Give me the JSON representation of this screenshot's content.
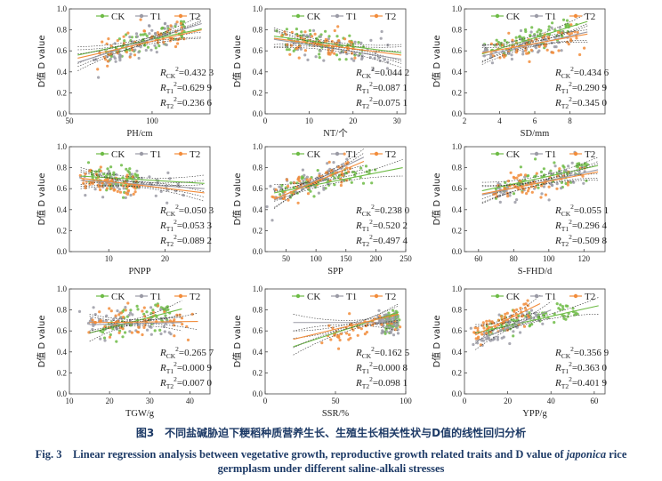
{
  "legend_labels": [
    "CK",
    "T1",
    "T2"
  ],
  "colors": {
    "CK": "#6dbb45",
    "T1": "#9a9aa5",
    "T2": "#f28c3a"
  },
  "y_label": "D值  D value",
  "caption": {
    "cn": "图3　不同盐碱胁迫下粳稻种质营养生长、生殖生长相关性状与D值的线性回归分析",
    "en_prefix": "Fig. 3　Linear regression analysis between vegetative growth, reproductive growth related traits and D value of ",
    "en_italic": "japonica",
    "en_suffix": " rice",
    "en_line2": "germplasm under different saline-alkali stresses"
  },
  "chart_data": [
    {
      "type": "scatter",
      "xlabel": "PH/cm",
      "xlim": [
        50,
        135
      ],
      "xticks": [
        50,
        100
      ],
      "ylim": [
        0,
        1.0
      ],
      "yticks": [
        0,
        0.2,
        0.4,
        0.6,
        0.8,
        1.0
      ],
      "series": [
        {
          "name": "CK",
          "line": [
            [
              55,
              0.56
            ],
            [
              130,
              0.81
            ]
          ],
          "cloud": {
            "cx": [
              70,
              120
            ],
            "cy": [
              0.58,
              0.82
            ],
            "spread": 0.1,
            "n": 70
          }
        },
        {
          "name": "T1",
          "line": [
            [
              55,
              0.49
            ],
            [
              130,
              0.86
            ]
          ],
          "cloud": {
            "cx": [
              65,
              115
            ],
            "cy": [
              0.5,
              0.78
            ],
            "spread": 0.12,
            "n": 60
          }
        },
        {
          "name": "T2",
          "line": [
            [
              55,
              0.53
            ],
            [
              130,
              0.8
            ]
          ],
          "cloud": {
            "cx": [
              70,
              120
            ],
            "cy": [
              0.57,
              0.78
            ],
            "spread": 0.1,
            "n": 60
          }
        }
      ],
      "r2": [
        "0.432 3",
        "0.629 9",
        "0.236 6"
      ]
    },
    {
      "type": "scatter",
      "xlabel": "NT/个",
      "xlim": [
        0,
        32
      ],
      "xticks": [
        0,
        10,
        20,
        30
      ],
      "ylim": [
        0,
        1.0
      ],
      "yticks": [
        0,
        0.2,
        0.4,
        0.6,
        0.8,
        1.0
      ],
      "series": [
        {
          "name": "CK",
          "line": [
            [
              2,
              0.74
            ],
            [
              31,
              0.58
            ]
          ],
          "cloud": {
            "cx": [
              4,
              22
            ],
            "cy": [
              0.73,
              0.62
            ],
            "spread": 0.1,
            "n": 70
          }
        },
        {
          "name": "T1",
          "line": [
            [
              2,
              0.71
            ],
            [
              31,
              0.52
            ]
          ],
          "cloud": {
            "cx": [
              5,
              28
            ],
            "cy": [
              0.7,
              0.55
            ],
            "spread": 0.12,
            "n": 60
          }
        },
        {
          "name": "T2",
          "line": [
            [
              2,
              0.72
            ],
            [
              31,
              0.56
            ]
          ],
          "cloud": {
            "cx": [
              4,
              20
            ],
            "cy": [
              0.72,
              0.62
            ],
            "spread": 0.1,
            "n": 60
          }
        }
      ],
      "r2": [
        "0.044 2",
        "0.087 1",
        "0.075 1"
      ]
    },
    {
      "type": "scatter",
      "xlabel": "SD/mm",
      "xlim": [
        2,
        10
      ],
      "xticks": [
        2,
        4,
        6,
        8
      ],
      "ylim": [
        0,
        1.0
      ],
      "yticks": [
        0,
        0.2,
        0.4,
        0.6,
        0.8,
        1.0
      ],
      "series": [
        {
          "name": "CK",
          "line": [
            [
              3,
              0.57
            ],
            [
              9,
              0.88
            ]
          ],
          "cloud": {
            "cx": [
              3.5,
              8
            ],
            "cy": [
              0.6,
              0.84
            ],
            "spread": 0.09,
            "n": 70
          }
        },
        {
          "name": "T1",
          "line": [
            [
              3,
              0.55
            ],
            [
              9,
              0.78
            ]
          ],
          "cloud": {
            "cx": [
              3,
              7.5
            ],
            "cy": [
              0.56,
              0.74
            ],
            "spread": 0.12,
            "n": 60
          }
        },
        {
          "name": "T2",
          "line": [
            [
              3,
              0.58
            ],
            [
              9,
              0.76
            ]
          ],
          "cloud": {
            "cx": [
              3.5,
              8.5
            ],
            "cy": [
              0.6,
              0.75
            ],
            "spread": 0.1,
            "n": 60
          }
        }
      ],
      "r2": [
        "0.434 6",
        "0.290 9",
        "0.345 0"
      ]
    },
    {
      "type": "scatter",
      "xlabel": "PNPP",
      "xlim": [
        3,
        28
      ],
      "xticks": [
        10,
        20
      ],
      "ylim": [
        0,
        1.0
      ],
      "yticks": [
        0,
        0.2,
        0.4,
        0.6,
        0.8,
        1.0
      ],
      "series": [
        {
          "name": "CK",
          "line": [
            [
              5,
              0.72
            ],
            [
              27,
              0.65
            ]
          ],
          "cloud": {
            "cx": [
              6,
              15
            ],
            "cy": [
              0.71,
              0.67
            ],
            "spread": 0.1,
            "n": 70
          }
        },
        {
          "name": "T1",
          "line": [
            [
              5,
              0.68
            ],
            [
              27,
              0.6
            ]
          ],
          "cloud": {
            "cx": [
              6,
              22
            ],
            "cy": [
              0.68,
              0.62
            ],
            "spread": 0.12,
            "n": 60
          }
        },
        {
          "name": "T2",
          "line": [
            [
              5,
              0.7
            ],
            [
              27,
              0.56
            ]
          ],
          "cloud": {
            "cx": [
              5,
              15
            ],
            "cy": [
              0.69,
              0.62
            ],
            "spread": 0.1,
            "n": 60
          }
        }
      ],
      "r2": [
        "0.050 3",
        "0.053 3",
        "0.089 2"
      ]
    },
    {
      "type": "scatter",
      "xlabel": "SPP",
      "xlim": [
        15,
        250
      ],
      "xticks": [
        50,
        100,
        150,
        200,
        250
      ],
      "ylim": [
        0,
        1.0
      ],
      "yticks": [
        0,
        0.2,
        0.4,
        0.6,
        0.8,
        1.0
      ],
      "series": [
        {
          "name": "CK",
          "line": [
            [
              30,
              0.56
            ],
            [
              245,
              0.8
            ]
          ],
          "cloud": {
            "cx": [
              40,
              200
            ],
            "cy": [
              0.57,
              0.78
            ],
            "spread": 0.08,
            "n": 70
          }
        },
        {
          "name": "T1",
          "line": [
            [
              30,
              0.49
            ],
            [
              180,
              0.9
            ]
          ],
          "cloud": {
            "cx": [
              30,
              150
            ],
            "cy": [
              0.52,
              0.82
            ],
            "spread": 0.1,
            "n": 60
          }
        },
        {
          "name": "T2",
          "line": [
            [
              30,
              0.5
            ],
            [
              180,
              0.86
            ]
          ],
          "cloud": {
            "cx": [
              30,
              160
            ],
            "cy": [
              0.52,
              0.8
            ],
            "spread": 0.09,
            "n": 60
          }
        }
      ],
      "r2": [
        "0.238 0",
        "0.520 2",
        "0.497 4"
      ]
    },
    {
      "type": "scatter",
      "xlabel": "S-FHD/d",
      "xlim": [
        52,
        132
      ],
      "xticks": [
        60,
        80,
        100,
        120
      ],
      "ylim": [
        0,
        1.0
      ],
      "yticks": [
        0,
        0.2,
        0.4,
        0.6,
        0.8,
        1.0
      ],
      "series": [
        {
          "name": "CK",
          "line": [
            [
              62,
              0.58
            ],
            [
              128,
              0.82
            ]
          ],
          "cloud": {
            "cx": [
              70,
              120
            ],
            "cy": [
              0.6,
              0.8
            ],
            "spread": 0.09,
            "n": 70
          }
        },
        {
          "name": "T1",
          "line": [
            [
              62,
              0.54
            ],
            [
              128,
              0.78
            ]
          ],
          "cloud": {
            "cx": [
              70,
              120
            ],
            "cy": [
              0.55,
              0.75
            ],
            "spread": 0.12,
            "n": 60
          }
        },
        {
          "name": "T2",
          "line": [
            [
              62,
              0.55
            ],
            [
              128,
              0.76
            ]
          ],
          "cloud": {
            "cx": [
              70,
              120
            ],
            "cy": [
              0.56,
              0.74
            ],
            "spread": 0.1,
            "n": 60
          }
        }
      ],
      "r2": [
        "0.055 1",
        "0.296 4",
        "0.509 8"
      ]
    },
    {
      "type": "scatter",
      "xlabel": "TGW/g",
      "xlim": [
        10,
        45
      ],
      "xticks": [
        10,
        20,
        30,
        40
      ],
      "ylim": [
        0,
        1.0
      ],
      "yticks": [
        0,
        0.2,
        0.4,
        0.6,
        0.8,
        1.0
      ],
      "series": [
        {
          "name": "CK",
          "line": [
            [
              15,
              0.58
            ],
            [
              38,
              0.81
            ]
          ],
          "cloud": {
            "cx": [
              17,
              35
            ],
            "cy": [
              0.6,
              0.78
            ],
            "spread": 0.1,
            "n": 70
          }
        },
        {
          "name": "T1",
          "line": [
            [
              15,
              0.66
            ],
            [
              38,
              0.68
            ]
          ],
          "cloud": {
            "cx": [
              15,
              35
            ],
            "cy": [
              0.66,
              0.68
            ],
            "spread": 0.13,
            "n": 60
          }
        },
        {
          "name": "T2",
          "line": [
            [
              15,
              0.68
            ],
            [
              42,
              0.69
            ]
          ],
          "cloud": {
            "cx": [
              15,
              40
            ],
            "cy": [
              0.68,
              0.69
            ],
            "spread": 0.12,
            "n": 60
          }
        }
      ],
      "r2": [
        "0.265 7",
        "0.000 9",
        "0.007 0"
      ]
    },
    {
      "type": "scatter",
      "xlabel": "SSR/%",
      "xlim": [
        0,
        100
      ],
      "xticks": [
        0,
        50,
        100
      ],
      "ylim": [
        0,
        1.0
      ],
      "yticks": [
        0,
        0.2,
        0.4,
        0.6,
        0.8,
        1.0
      ],
      "series": [
        {
          "name": "CK",
          "line": [
            [
              20,
              0.45
            ],
            [
              95,
              0.78
            ]
          ],
          "cloud": {
            "cx": [
              85,
              95
            ],
            "cy": [
              0.7,
              0.72
            ],
            "spread": 0.08,
            "n": 70
          }
        },
        {
          "name": "T1",
          "line": [
            [
              20,
              0.68
            ],
            [
              95,
              0.68
            ]
          ],
          "cloud": {
            "cx": [
              80,
              95
            ],
            "cy": [
              0.68,
              0.68
            ],
            "spread": 0.09,
            "n": 60
          }
        },
        {
          "name": "T2",
          "line": [
            [
              20,
              0.52
            ],
            [
              95,
              0.76
            ]
          ],
          "cloud": {
            "cx": [
              40,
              95
            ],
            "cy": [
              0.55,
              0.72
            ],
            "spread": 0.1,
            "n": 50
          }
        }
      ],
      "r2": [
        "0.162 5",
        "0.000 8",
        "0.098 1"
      ]
    },
    {
      "type": "scatter",
      "xlabel": "YPP/g",
      "xlim": [
        0,
        65
      ],
      "xticks": [
        0,
        20,
        40,
        60
      ],
      "ylim": [
        0,
        1.0
      ],
      "yticks": [
        0,
        0.2,
        0.4,
        0.6,
        0.8,
        1.0
      ],
      "series": [
        {
          "name": "CK",
          "line": [
            [
              5,
              0.58
            ],
            [
              62,
              0.84
            ]
          ],
          "cloud": {
            "cx": [
              10,
              50
            ],
            "cy": [
              0.6,
              0.82
            ],
            "spread": 0.08,
            "n": 70
          }
        },
        {
          "name": "T1",
          "line": [
            [
              5,
              0.5
            ],
            [
              40,
              0.8
            ]
          ],
          "cloud": {
            "cx": [
              5,
              35
            ],
            "cy": [
              0.52,
              0.76
            ],
            "spread": 0.1,
            "n": 60
          }
        },
        {
          "name": "T2",
          "line": [
            [
              5,
              0.56
            ],
            [
              35,
              0.86
            ]
          ],
          "cloud": {
            "cx": [
              5,
              30
            ],
            "cy": [
              0.58,
              0.8
            ],
            "spread": 0.09,
            "n": 60
          }
        }
      ],
      "r2": [
        "0.356 9",
        "0.363 0",
        "0.401 9"
      ]
    }
  ]
}
